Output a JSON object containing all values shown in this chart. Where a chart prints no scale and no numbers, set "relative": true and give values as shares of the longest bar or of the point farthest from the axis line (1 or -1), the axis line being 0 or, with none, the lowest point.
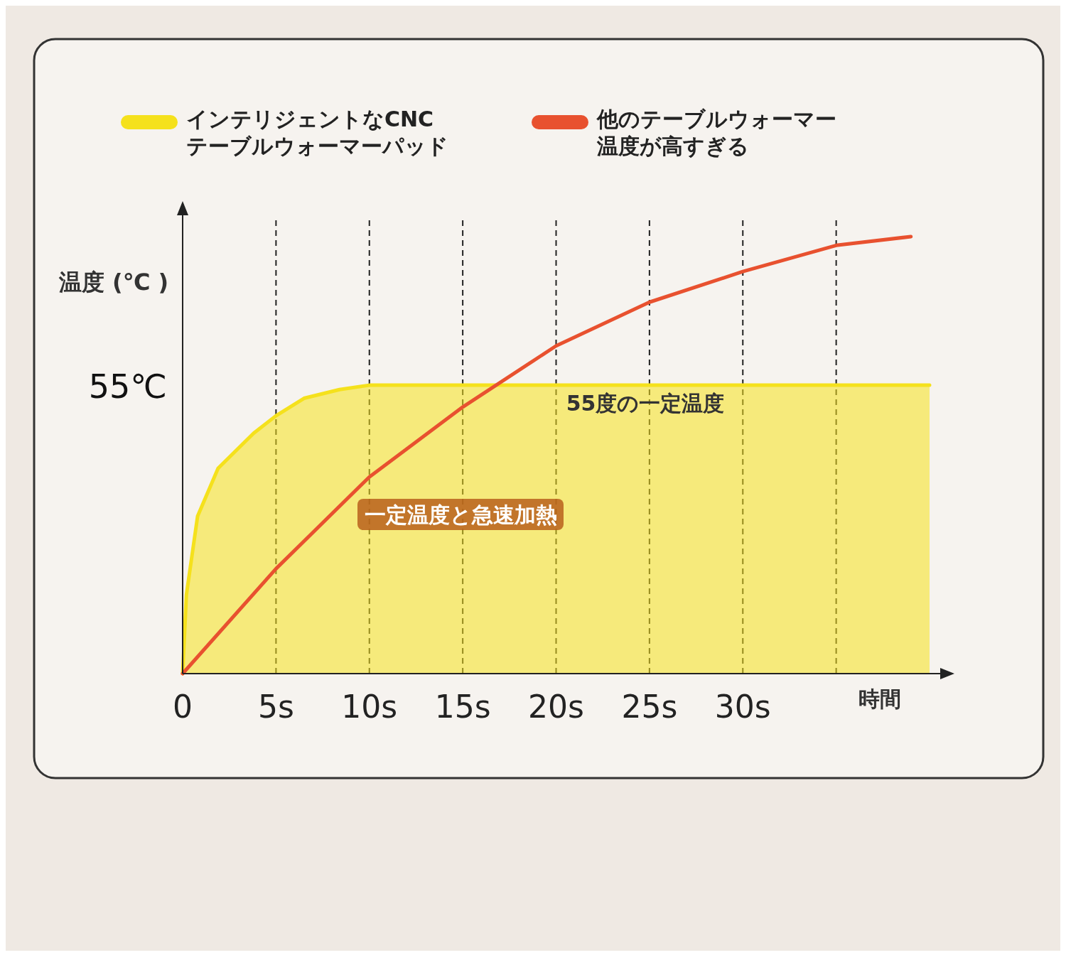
{
  "chart_data": {
    "type": "line",
    "relative": true,
    "ylabel": "温度 (℃ )",
    "xlabel": "時間",
    "xlim": [
      0,
      40
    ],
    "xticks": [
      {
        "value": 0,
        "label": "0"
      },
      {
        "value": 5,
        "label": "5s"
      },
      {
        "value": 10,
        "label": "10s"
      },
      {
        "value": 15,
        "label": "15s"
      },
      {
        "value": 20,
        "label": "20s"
      },
      {
        "value": 25,
        "label": "25s"
      },
      {
        "value": 30,
        "label": "30s"
      },
      {
        "value": 35,
        "label": null
      }
    ],
    "grid": "x",
    "legend": "top",
    "series": [
      {
        "name": "インテリジェントなCNCテーブルウォーマーパッド",
        "type": "area",
        "color": "#f5e11c",
        "x": [
          0,
          0.2,
          0.8,
          1.9,
          3.8,
          5,
          6.5,
          8.4,
          10,
          40
        ],
        "values": [
          0,
          0.18,
          0.36,
          0.47,
          0.55,
          0.59,
          0.63,
          0.65,
          0.66,
          0.66
        ]
      },
      {
        "name": "他のテーブルウォーマー温度が高すぎる",
        "color": "#e8512f",
        "x": [
          0,
          5,
          10,
          15,
          20,
          25,
          30,
          35,
          39
        ],
        "values": [
          0,
          0.24,
          0.45,
          0.61,
          0.75,
          0.85,
          0.92,
          0.98,
          1.0
        ]
      }
    ],
    "annotations": [
      "55℃",
      "55度の一定温度",
      "一定温度と急速加熱"
    ]
  }
}
